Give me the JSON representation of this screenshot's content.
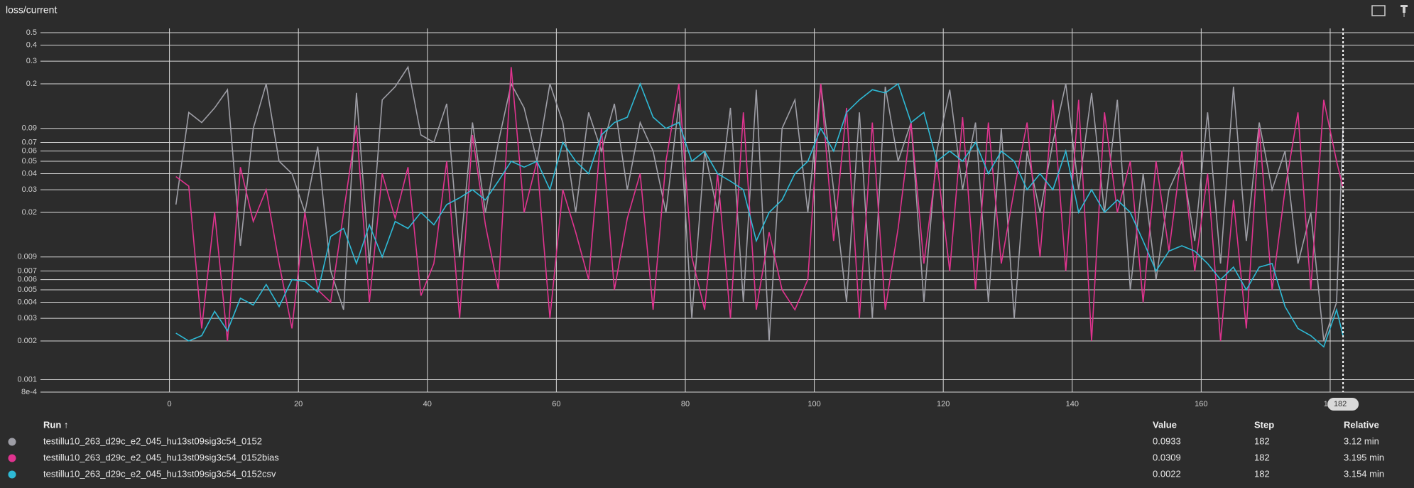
{
  "chart_data": {
    "type": "line",
    "title": "loss/current",
    "log_y": true,
    "grid": true,
    "xlim": [
      -20,
      193
    ],
    "xticks": [
      0,
      20,
      40,
      60,
      80,
      100,
      120,
      140,
      160,
      180
    ],
    "ylim": [
      0.0008,
      0.5
    ],
    "yticks": [
      {
        "value": 0.0008,
        "label": "8e-4"
      },
      0.001,
      0.002,
      0.003,
      0.004,
      0.005,
      0.006,
      0.007,
      0.009,
      0.02,
      0.03,
      0.04,
      0.05,
      0.06,
      0.07,
      0.09,
      0.2,
      0.3,
      0.4,
      0.5
    ],
    "x": [
      1,
      3,
      5,
      7,
      9,
      11,
      13,
      15,
      17,
      19,
      21,
      23,
      25,
      27,
      29,
      31,
      33,
      35,
      37,
      39,
      41,
      43,
      45,
      47,
      49,
      51,
      53,
      55,
      57,
      59,
      61,
      63,
      65,
      67,
      69,
      71,
      73,
      75,
      77,
      79,
      81,
      83,
      85,
      87,
      89,
      91,
      93,
      95,
      97,
      99,
      101,
      103,
      105,
      107,
      109,
      111,
      113,
      115,
      117,
      119,
      121,
      123,
      125,
      127,
      129,
      131,
      133,
      135,
      137,
      139,
      141,
      143,
      145,
      147,
      149,
      151,
      153,
      155,
      157,
      159,
      161,
      163,
      165,
      167,
      169,
      171,
      173,
      175,
      177,
      179,
      181,
      182
    ],
    "series": [
      {
        "name": "testillu10_263_d29c_e2_045_hu13st09sig3c54_0152",
        "color": "#9e9ea6",
        "values": [
          0.023,
          0.12,
          0.1,
          0.13,
          0.18,
          0.011,
          0.09,
          0.2,
          0.05,
          0.04,
          0.02,
          0.065,
          0.007,
          0.0035,
          0.17,
          0.008,
          0.15,
          0.19,
          0.27,
          0.08,
          0.07,
          0.14,
          0.009,
          0.1,
          0.02,
          0.07,
          0.2,
          0.13,
          0.05,
          0.2,
          0.1,
          0.02,
          0.12,
          0.06,
          0.14,
          0.03,
          0.1,
          0.06,
          0.02,
          0.14,
          0.003,
          0.06,
          0.02,
          0.13,
          0.004,
          0.18,
          0.002,
          0.09,
          0.15,
          0.02,
          0.2,
          0.03,
          0.004,
          0.12,
          0.003,
          0.19,
          0.05,
          0.1,
          0.004,
          0.06,
          0.18,
          0.03,
          0.1,
          0.004,
          0.09,
          0.003,
          0.06,
          0.02,
          0.07,
          0.2,
          0.03,
          0.17,
          0.02,
          0.15,
          0.005,
          0.04,
          0.006,
          0.03,
          0.05,
          0.012,
          0.12,
          0.008,
          0.19,
          0.012,
          0.1,
          0.03,
          0.06,
          0.008,
          0.02,
          0.002,
          0.004,
          0.0933
        ]
      },
      {
        "name": "testillu10_263_d29c_e2_045_hu13st09sig3c54_0152bias",
        "color": "#e0338f",
        "values": [
          0.038,
          0.032,
          0.0025,
          0.02,
          0.002,
          0.045,
          0.017,
          0.03,
          0.008,
          0.0025,
          0.02,
          0.005,
          0.004,
          0.02,
          0.095,
          0.004,
          0.04,
          0.018,
          0.045,
          0.0045,
          0.008,
          0.05,
          0.003,
          0.08,
          0.016,
          0.005,
          0.27,
          0.02,
          0.05,
          0.003,
          0.03,
          0.014,
          0.006,
          0.09,
          0.005,
          0.018,
          0.04,
          0.0035,
          0.05,
          0.2,
          0.009,
          0.0035,
          0.04,
          0.003,
          0.12,
          0.0035,
          0.014,
          0.005,
          0.0035,
          0.006,
          0.2,
          0.012,
          0.13,
          0.003,
          0.1,
          0.0035,
          0.015,
          0.1,
          0.008,
          0.05,
          0.007,
          0.11,
          0.005,
          0.1,
          0.008,
          0.03,
          0.1,
          0.009,
          0.15,
          0.007,
          0.15,
          0.002,
          0.12,
          0.02,
          0.05,
          0.004,
          0.05,
          0.01,
          0.06,
          0.007,
          0.04,
          0.002,
          0.025,
          0.0025,
          0.09,
          0.005,
          0.03,
          0.12,
          0.005,
          0.15,
          0.05,
          0.0309
        ]
      },
      {
        "name": "testillu10_263_d29c_e2_045_hu13st09sig3c54_0152csv",
        "color": "#2ebad6",
        "values": [
          0.0023,
          0.002,
          0.0022,
          0.0034,
          0.0024,
          0.0043,
          0.0038,
          0.0055,
          0.0037,
          0.006,
          0.0058,
          0.0048,
          0.013,
          0.015,
          0.008,
          0.016,
          0.009,
          0.017,
          0.015,
          0.02,
          0.016,
          0.023,
          0.026,
          0.03,
          0.025,
          0.035,
          0.05,
          0.045,
          0.05,
          0.03,
          0.07,
          0.05,
          0.04,
          0.08,
          0.1,
          0.11,
          0.2,
          0.11,
          0.09,
          0.1,
          0.05,
          0.06,
          0.04,
          0.035,
          0.03,
          0.012,
          0.02,
          0.025,
          0.04,
          0.05,
          0.09,
          0.06,
          0.12,
          0.15,
          0.18,
          0.17,
          0.2,
          0.1,
          0.12,
          0.05,
          0.06,
          0.05,
          0.07,
          0.04,
          0.06,
          0.05,
          0.03,
          0.04,
          0.03,
          0.06,
          0.02,
          0.03,
          0.02,
          0.025,
          0.02,
          0.012,
          0.007,
          0.01,
          0.011,
          0.01,
          0.008,
          0.006,
          0.0075,
          0.005,
          0.0075,
          0.008,
          0.0037,
          0.0025,
          0.0022,
          0.0018,
          0.0035,
          0.0022
        ]
      }
    ]
  },
  "table": {
    "headers": [
      "Run ↑",
      "Value",
      "Step",
      "Relative"
    ],
    "relative": [
      "3.12 min",
      "3.195 min",
      "3.154 min"
    ]
  }
}
